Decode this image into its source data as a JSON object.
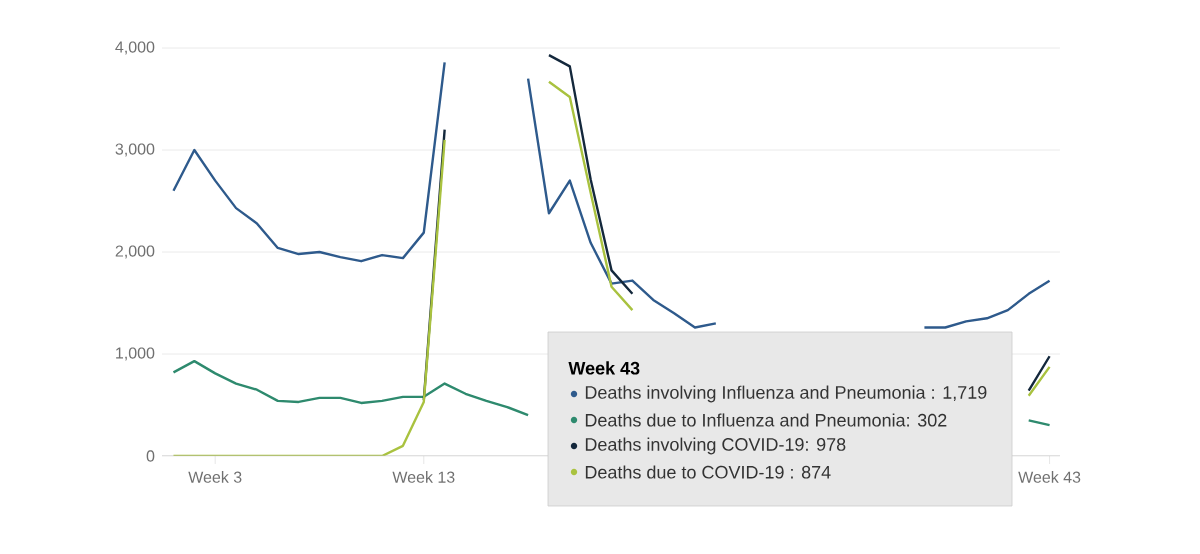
{
  "chart_data": {
    "type": "line",
    "categories": [
      null,
      null,
      "Week 3",
      null,
      null,
      null,
      null,
      null,
      null,
      null,
      null,
      null,
      "Week 13",
      null,
      null,
      null,
      null,
      null,
      null,
      null,
      null,
      null,
      null,
      null,
      null,
      null,
      null,
      null,
      null,
      null,
      null,
      null,
      null,
      null,
      null,
      null,
      null,
      null,
      null,
      null,
      null,
      null,
      "Week 43"
    ],
    "ylim": [
      0,
      4000
    ],
    "yticks": [
      0,
      {
        "value": 1000,
        "label": "1,000"
      },
      {
        "value": 2000,
        "label": "2,000"
      },
      {
        "value": 3000,
        "label": "3,000"
      },
      {
        "value": 4000,
        "label": "4,000"
      }
    ],
    "grid": "y",
    "series": [
      {
        "color": "#2e5a8c",
        "values": [
          2600,
          3000,
          2700,
          2430,
          2280,
          2040,
          1980,
          2000,
          1950,
          1910,
          1970,
          1940,
          2190,
          3860,
          null,
          null,
          null,
          3700,
          2380,
          2700,
          2090,
          1690,
          1720,
          1530,
          1400,
          1260,
          1300,
          null,
          null,
          null,
          null,
          null,
          null,
          null,
          null,
          null,
          1260,
          1260,
          1320,
          1350,
          1430,
          1590,
          1719
        ]
      },
      {
        "color": "#2e8a6e",
        "values": [
          820,
          930,
          810,
          710,
          650,
          540,
          530,
          570,
          570,
          520,
          540,
          580,
          580,
          710,
          610,
          540,
          480,
          400,
          null,
          null,
          null,
          null,
          null,
          null,
          null,
          null,
          null,
          null,
          null,
          null,
          null,
          null,
          null,
          null,
          null,
          null,
          null,
          null,
          null,
          null,
          null,
          350,
          302
        ]
      },
      {
        "color": "#14283c",
        "values": [
          null,
          null,
          null,
          null,
          null,
          null,
          null,
          null,
          null,
          null,
          null,
          null,
          550,
          3200,
          null,
          null,
          null,
          null,
          3930,
          3820,
          2710,
          1820,
          1590,
          null,
          null,
          null,
          null,
          null,
          null,
          null,
          null,
          null,
          null,
          null,
          null,
          null,
          null,
          null,
          null,
          null,
          null,
          640,
          978
        ]
      },
      {
        "color": "#a9c23f",
        "values": [
          0,
          0,
          0,
          0,
          0,
          0,
          0,
          0,
          0,
          0,
          0,
          100,
          530,
          3100,
          null,
          null,
          null,
          null,
          3670,
          3520,
          2580,
          1660,
          1430,
          null,
          null,
          null,
          null,
          null,
          null,
          null,
          null,
          null,
          null,
          null,
          null,
          null,
          null,
          null,
          null,
          null,
          null,
          590,
          874
        ]
      }
    ],
    "annotations": [
      "Week 43",
      "Deaths involving Influenza and Pneumonia : 1,719",
      "Deaths due to Influenza and Pneumonia: 302",
      "Deaths involving COVID-19: 978",
      "Deaths due to COVID-19 : 874"
    ]
  }
}
